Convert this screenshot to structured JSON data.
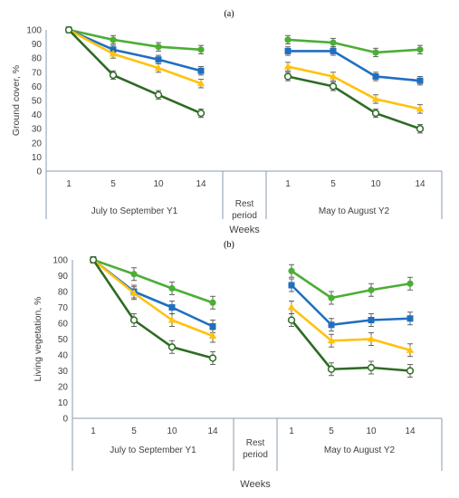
{
  "figure": {
    "xlabel": "Weeks"
  },
  "colors": {
    "series1": "#7dc242",
    "series2": "#4cae35",
    "series3": "#1f6fc0",
    "series4": "#ffc20e",
    "series5": "#2e6b24"
  },
  "chart_data": [
    {
      "panel": "(a)",
      "type": "line",
      "ylabel": "Ground cover, %",
      "ylim": [
        0,
        100
      ],
      "yticks": [
        0,
        10,
        20,
        30,
        40,
        50,
        60,
        70,
        80,
        90,
        100
      ],
      "grid": false,
      "groups": [
        {
          "label": "July to September Y1",
          "weeks": [
            "1",
            "5",
            "10",
            "14"
          ]
        },
        {
          "label": "Rest period",
          "weeks": []
        },
        {
          "label": "May to August Y2",
          "weeks": [
            "1",
            "5",
            "10",
            "14"
          ]
        }
      ],
      "series": [
        {
          "color": "#4cae35",
          "marker": "circle-filled",
          "y1": [
            100,
            93,
            88,
            86
          ],
          "y1_err": [
            2,
            3,
            3,
            3
          ],
          "y2": [
            93,
            91,
            84,
            86
          ],
          "y2_err": [
            3,
            3,
            3,
            3
          ]
        },
        {
          "color": "#1f6fc0",
          "marker": "square",
          "y1": [
            100,
            86,
            79,
            71
          ],
          "y1_err": [
            2,
            3,
            3,
            3
          ],
          "y2": [
            85,
            85,
            67,
            64
          ],
          "y2_err": [
            3,
            3,
            3,
            3
          ]
        },
        {
          "color": "#ffc20e",
          "marker": "triangle",
          "y1": [
            100,
            83,
            73,
            62
          ],
          "y1_err": [
            2,
            3,
            3,
            3
          ],
          "y2": [
            74,
            67,
            51,
            44
          ],
          "y2_err": [
            3,
            3,
            3,
            3
          ]
        },
        {
          "color": "#2e6b24",
          "marker": "circle-open",
          "y1": [
            100,
            68,
            54,
            41
          ],
          "y1_err": [
            2,
            3,
            3,
            3
          ],
          "y2": [
            67,
            60,
            41,
            30
          ],
          "y2_err": [
            3,
            3,
            3,
            3
          ]
        }
      ]
    },
    {
      "panel": "(b)",
      "type": "line",
      "ylabel": "Living vegetation, %",
      "ylim": [
        0,
        100
      ],
      "yticks": [
        0,
        10,
        20,
        30,
        40,
        50,
        60,
        70,
        80,
        90,
        100
      ],
      "grid": false,
      "groups": [
        {
          "label": "July to September Y1",
          "weeks": [
            "1",
            "5",
            "10",
            "14"
          ]
        },
        {
          "label": "Rest period",
          "weeks": []
        },
        {
          "label": "May to August Y2",
          "weeks": [
            "1",
            "5",
            "10",
            "14"
          ]
        }
      ],
      "series": [
        {
          "color": "#4cae35",
          "marker": "circle-filled",
          "y1": [
            100,
            91,
            82,
            73
          ],
          "y1_err": [
            2,
            4,
            4,
            4
          ],
          "y2": [
            93,
            76,
            81,
            85
          ],
          "y2_err": [
            4,
            4,
            4,
            4
          ]
        },
        {
          "color": "#1f6fc0",
          "marker": "square",
          "y1": [
            100,
            80,
            70,
            58
          ],
          "y1_err": [
            2,
            4,
            4,
            4
          ],
          "y2": [
            84,
            59,
            62,
            63
          ],
          "y2_err": [
            4,
            4,
            4,
            4
          ]
        },
        {
          "color": "#ffc20e",
          "marker": "triangle",
          "y1": [
            100,
            79,
            62,
            52
          ],
          "y1_err": [
            2,
            4,
            4,
            4
          ],
          "y2": [
            70,
            49,
            50,
            43
          ],
          "y2_err": [
            4,
            4,
            4,
            4
          ]
        },
        {
          "color": "#2e6b24",
          "marker": "circle-open",
          "y1": [
            100,
            62,
            45,
            38
          ],
          "y1_err": [
            2,
            4,
            4,
            4
          ],
          "y2": [
            62,
            31,
            32,
            30
          ],
          "y2_err": [
            4,
            4,
            4,
            4
          ]
        }
      ]
    }
  ]
}
